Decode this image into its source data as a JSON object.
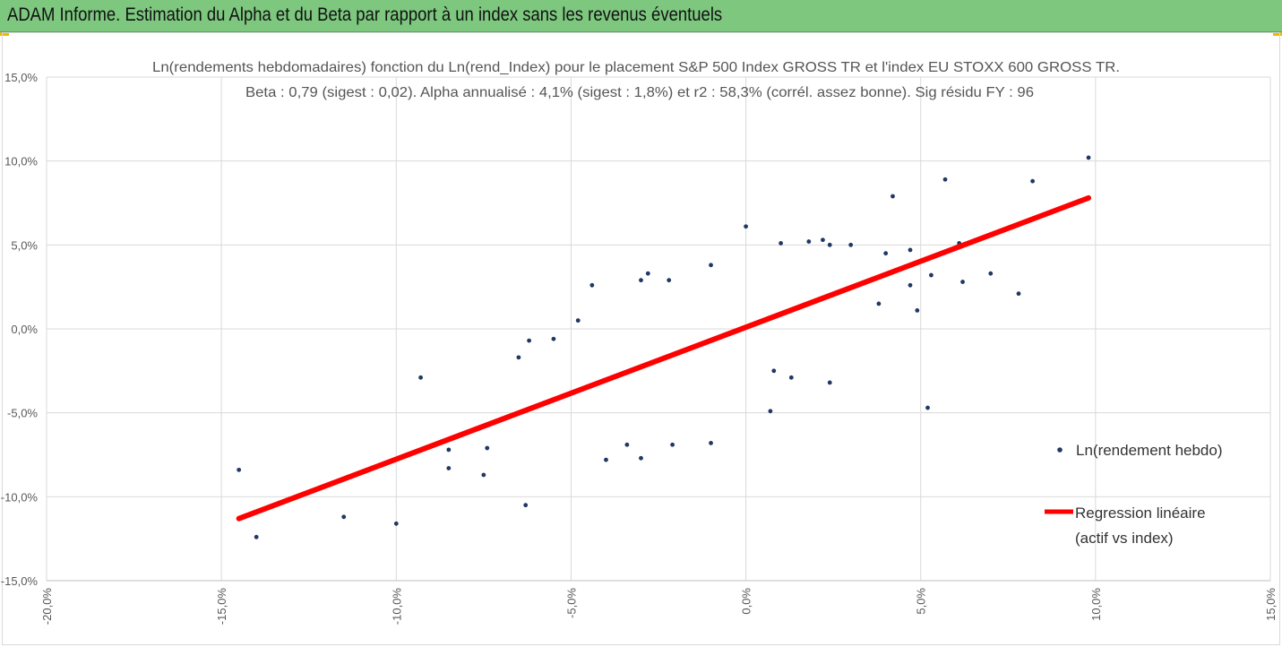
{
  "header": {
    "title": "ADAM Informe. Estimation du Alpha et du Beta par rapport à un index sans les revenus éventuels",
    "bar_color": "#7dc77f",
    "corner_color": "#f2b800"
  },
  "chart_data": {
    "type": "scatter",
    "title": "Ln(rendements hebdomadaires) fonction du Ln(rend_Index) pour le placement S&P 500 Index GROSS TR et l'index EU STOXX 600 GROSS TR.",
    "subtitle": "Beta : 0,79 (sigest : 0,02). Alpha annualisé : 4,1% (sigest : 1,8%) et r2 : 58,3% (corrél. assez bonne). Sig résidu FY : 96",
    "xlabel": "",
    "ylabel": "",
    "xlim": [
      -0.2,
      0.15
    ],
    "ylim": [
      -0.15,
      0.15
    ],
    "x_ticks": [
      -0.2,
      -0.15,
      -0.1,
      -0.05,
      0.0,
      0.05,
      0.1,
      0.15
    ],
    "x_tick_labels": [
      "-20,0%",
      "-15,0%",
      "-10,0%",
      "-5,0%",
      "0,0%",
      "5,0%",
      "10,0%",
      "15,0%"
    ],
    "y_ticks": [
      -0.15,
      -0.1,
      -0.05,
      0.0,
      0.05,
      0.1,
      0.15
    ],
    "y_tick_labels": [
      "-15,0%",
      "-10,0%",
      "-5,0%",
      "0,0%",
      "5,0%",
      "10,0%",
      "15,0%"
    ],
    "grid": true,
    "legend_position": "right",
    "series": [
      {
        "name": "Ln(rendement hebdo)",
        "kind": "scatter",
        "color": "#1f3864",
        "points": [
          [
            -0.145,
            -0.084
          ],
          [
            -0.14,
            -0.124
          ],
          [
            -0.115,
            -0.112
          ],
          [
            -0.1,
            -0.116
          ],
          [
            -0.093,
            -0.029
          ],
          [
            -0.085,
            -0.083
          ],
          [
            -0.085,
            -0.072
          ],
          [
            -0.075,
            -0.087
          ],
          [
            -0.074,
            -0.071
          ],
          [
            -0.063,
            -0.105
          ],
          [
            -0.065,
            -0.017
          ],
          [
            -0.062,
            -0.007
          ],
          [
            -0.055,
            -0.006
          ],
          [
            -0.048,
            0.005
          ],
          [
            -0.04,
            -0.078
          ],
          [
            -0.034,
            -0.069
          ],
          [
            -0.03,
            -0.077
          ],
          [
            -0.021,
            -0.069
          ],
          [
            -0.01,
            -0.068
          ],
          [
            0.0,
            0.061
          ],
          [
            -0.01,
            0.038
          ],
          [
            -0.028,
            0.033
          ],
          [
            -0.022,
            0.029
          ],
          [
            -0.03,
            0.029
          ],
          [
            -0.044,
            0.026
          ],
          [
            0.042,
            0.079
          ],
          [
            0.057,
            0.089
          ],
          [
            0.082,
            0.088
          ],
          [
            0.098,
            0.102
          ],
          [
            0.07,
            0.033
          ],
          [
            0.078,
            0.021
          ],
          [
            0.061,
            0.051
          ],
          [
            0.062,
            0.028
          ],
          [
            0.053,
            0.032
          ],
          [
            0.052,
            -0.047
          ],
          [
            0.047,
            0.047
          ],
          [
            0.04,
            0.045
          ],
          [
            0.047,
            0.026
          ],
          [
            0.049,
            0.011
          ],
          [
            0.038,
            0.015
          ],
          [
            0.024,
            -0.032
          ],
          [
            0.007,
            -0.049
          ],
          [
            0.013,
            -0.029
          ],
          [
            0.008,
            -0.025
          ],
          [
            0.018,
            0.052
          ],
          [
            0.022,
            0.053
          ],
          [
            0.01,
            0.051
          ],
          [
            0.024,
            0.05
          ],
          [
            0.03,
            0.05
          ]
        ]
      },
      {
        "name": "Regression linéaire",
        "name_line2": "(actif vs index)",
        "kind": "line",
        "color": "#ff0000",
        "x": [
          -0.145,
          0.098
        ],
        "y": [
          -0.113,
          0.078
        ]
      }
    ]
  }
}
